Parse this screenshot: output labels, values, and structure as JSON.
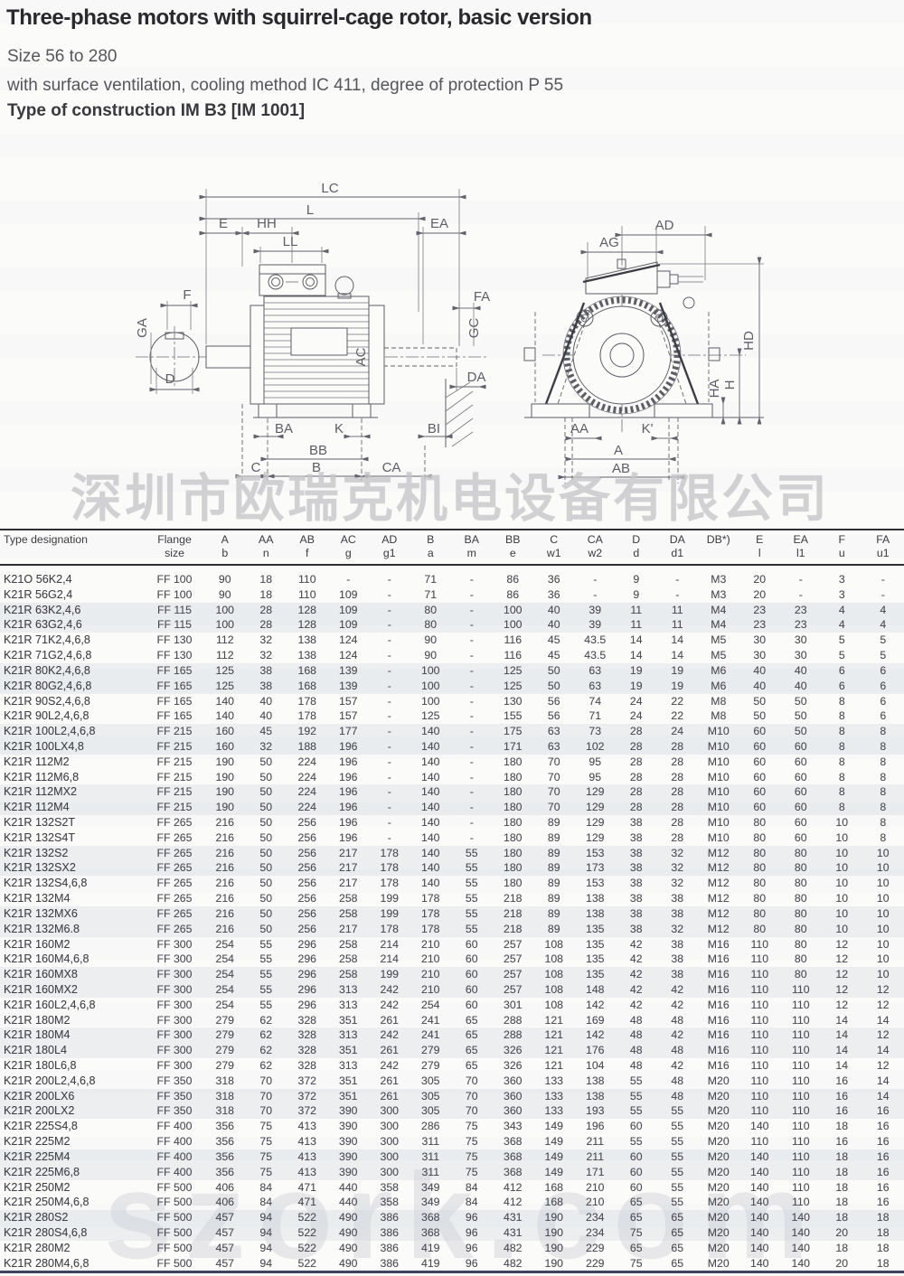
{
  "header": {
    "title": "Three-phase motors with squirrel-cage rotor, basic version",
    "line1": "Size 56 to 280",
    "line2": "with surface ventilation, cooling method IC 411, degree of protection P 55",
    "line3": "Type of construction IM B3 [IM 1001]"
  },
  "watermarks": {
    "company_cn": "深圳市欧瑞克机电设备有限公司",
    "site": "szork.com"
  },
  "diagram": {
    "side_labels": {
      "lc": "LC",
      "l": "L",
      "e": "E",
      "hh": "HH",
      "ll": "LL",
      "ea": "EA",
      "f": "F",
      "ga": "GA",
      "d": "D",
      "ac": "AC",
      "fa": "FA",
      "gc": "GC",
      "da": "DA",
      "ba": "BA",
      "k": "K",
      "bi": "BI",
      "bb": "BB",
      "c": "C",
      "b": "B",
      "ca": "CA"
    },
    "end_labels": {
      "ag": "AG",
      "ad": "AD",
      "hd": "HD",
      "ha": "HA",
      "h": "H",
      "aa": "AA",
      "kp": "K'",
      "a": "A",
      "ab": "AB"
    }
  },
  "table": {
    "columns": [
      {
        "l1": "Type designation",
        "l2": ""
      },
      {
        "l1": "Flange",
        "l2": "size"
      },
      {
        "l1": "A",
        "l2": "b"
      },
      {
        "l1": "AA",
        "l2": "n"
      },
      {
        "l1": "AB",
        "l2": "f"
      },
      {
        "l1": "AC",
        "l2": "g"
      },
      {
        "l1": "AD",
        "l2": "g1"
      },
      {
        "l1": "B",
        "l2": "a"
      },
      {
        "l1": "BA",
        "l2": "m"
      },
      {
        "l1": "BB",
        "l2": "e"
      },
      {
        "l1": "C",
        "l2": "w1"
      },
      {
        "l1": "CA",
        "l2": "w2"
      },
      {
        "l1": "D",
        "l2": "d"
      },
      {
        "l1": "DA",
        "l2": "d1"
      },
      {
        "l1": "DB*)",
        "l2": ""
      },
      {
        "l1": "E",
        "l2": "l"
      },
      {
        "l1": "EA",
        "l2": "l1"
      },
      {
        "l1": "F",
        "l2": "u"
      },
      {
        "l1": "FA",
        "l2": "u1"
      }
    ],
    "rows": [
      [
        "K21O 56K2,4",
        "FF 100",
        "90",
        "18",
        "110",
        "-",
        "-",
        "71",
        "-",
        "86",
        "36",
        "-",
        "9",
        "-",
        "M3",
        "20",
        "-",
        "3",
        "-"
      ],
      [
        "K21R 56G2,4",
        "FF 100",
        "90",
        "18",
        "110",
        "109",
        "-",
        "71",
        "-",
        "86",
        "36",
        "-",
        "9",
        "-",
        "M3",
        "20",
        "-",
        "3",
        "-"
      ],
      [
        "K21R 63K2,4,6",
        "FF 115",
        "100",
        "28",
        "128",
        "109",
        "-",
        "80",
        "-",
        "100",
        "40",
        "39",
        "11",
        "11",
        "M4",
        "23",
        "23",
        "4",
        "4"
      ],
      [
        "K21R 63G2,4,6",
        "FF 115",
        "100",
        "28",
        "128",
        "109",
        "-",
        "80",
        "-",
        "100",
        "40",
        "39",
        "11",
        "11",
        "M4",
        "23",
        "23",
        "4",
        "4"
      ],
      [
        "K21R 71K2,4,6,8",
        "FF 130",
        "112",
        "32",
        "138",
        "124",
        "-",
        "90",
        "-",
        "116",
        "45",
        "43.5",
        "14",
        "14",
        "M5",
        "30",
        "30",
        "5",
        "5"
      ],
      [
        "K21R 71G2,4,6,8",
        "FF 130",
        "112",
        "32",
        "138",
        "124",
        "-",
        "90",
        "-",
        "116",
        "45",
        "43.5",
        "14",
        "14",
        "M5",
        "30",
        "30",
        "5",
        "5"
      ],
      [
        "K21R 80K2,4,6,8",
        "FF 165",
        "125",
        "38",
        "168",
        "139",
        "-",
        "100",
        "-",
        "125",
        "50",
        "63",
        "19",
        "19",
        "M6",
        "40",
        "40",
        "6",
        "6"
      ],
      [
        "K21R 80G2,4,6,8",
        "FF 165",
        "125",
        "38",
        "168",
        "139",
        "-",
        "100",
        "-",
        "125",
        "50",
        "63",
        "19",
        "19",
        "M6",
        "40",
        "40",
        "6",
        "6"
      ],
      [
        "K21R 90S2,4,6,8",
        "FF 165",
        "140",
        "40",
        "178",
        "157",
        "-",
        "100",
        "-",
        "130",
        "56",
        "74",
        "24",
        "22",
        "M8",
        "50",
        "50",
        "8",
        "6"
      ],
      [
        "K21R 90L2,4,6,8",
        "FF 165",
        "140",
        "40",
        "178",
        "157",
        "-",
        "125",
        "-",
        "155",
        "56",
        "71",
        "24",
        "22",
        "M8",
        "50",
        "50",
        "8",
        "6"
      ],
      [
        "K21R 100L2,4,6,8",
        "FF 215",
        "160",
        "45",
        "192",
        "177",
        "-",
        "140",
        "-",
        "175",
        "63",
        "73",
        "28",
        "24",
        "M10",
        "60",
        "50",
        "8",
        "8"
      ],
      [
        "K21R 100LX4,8",
        "FF 215",
        "160",
        "32",
        "188",
        "196",
        "-",
        "140",
        "-",
        "171",
        "63",
        "102",
        "28",
        "28",
        "M10",
        "60",
        "60",
        "8",
        "8"
      ],
      [
        "K21R 112M2",
        "FF 215",
        "190",
        "50",
        "224",
        "196",
        "-",
        "140",
        "-",
        "180",
        "70",
        "95",
        "28",
        "28",
        "M10",
        "60",
        "60",
        "8",
        "8"
      ],
      [
        "K21R 112M6,8",
        "FF 215",
        "190",
        "50",
        "224",
        "196",
        "-",
        "140",
        "-",
        "180",
        "70",
        "95",
        "28",
        "28",
        "M10",
        "60",
        "60",
        "8",
        "8"
      ],
      [
        "K21R 112MX2",
        "FF 215",
        "190",
        "50",
        "224",
        "196",
        "-",
        "140",
        "-",
        "180",
        "70",
        "129",
        "28",
        "28",
        "M10",
        "60",
        "60",
        "8",
        "8"
      ],
      [
        "K21R 112M4",
        "FF 215",
        "190",
        "50",
        "224",
        "196",
        "-",
        "140",
        "-",
        "180",
        "70",
        "129",
        "28",
        "28",
        "M10",
        "60",
        "60",
        "8",
        "8"
      ],
      [
        "K21R 132S2T",
        "FF 265",
        "216",
        "50",
        "256",
        "196",
        "-",
        "140",
        "-",
        "180",
        "89",
        "129",
        "38",
        "28",
        "M10",
        "80",
        "60",
        "10",
        "8"
      ],
      [
        "K21R 132S4T",
        "FF 265",
        "216",
        "50",
        "256",
        "196",
        "-",
        "140",
        "-",
        "180",
        "89",
        "129",
        "38",
        "28",
        "M10",
        "80",
        "60",
        "10",
        "8"
      ],
      [
        "K21R 132S2",
        "FF 265",
        "216",
        "50",
        "256",
        "217",
        "178",
        "140",
        "55",
        "180",
        "89",
        "153",
        "38",
        "32",
        "M12",
        "80",
        "80",
        "10",
        "10"
      ],
      [
        "K21R 132SX2",
        "FF 265",
        "216",
        "50",
        "256",
        "217",
        "178",
        "140",
        "55",
        "180",
        "89",
        "173",
        "38",
        "32",
        "M12",
        "80",
        "80",
        "10",
        "10"
      ],
      [
        "K21R 132S4,6,8",
        "FF 265",
        "216",
        "50",
        "256",
        "217",
        "178",
        "140",
        "55",
        "180",
        "89",
        "153",
        "38",
        "32",
        "M12",
        "80",
        "80",
        "10",
        "10"
      ],
      [
        "K21R 132M4",
        "FF 265",
        "216",
        "50",
        "256",
        "258",
        "199",
        "178",
        "55",
        "218",
        "89",
        "138",
        "38",
        "38",
        "M12",
        "80",
        "80",
        "10",
        "10"
      ],
      [
        "K21R 132MX6",
        "FF 265",
        "216",
        "50",
        "256",
        "258",
        "199",
        "178",
        "55",
        "218",
        "89",
        "138",
        "38",
        "38",
        "M12",
        "80",
        "80",
        "10",
        "10"
      ],
      [
        "K21R 132M6.8",
        "FF 265",
        "216",
        "50",
        "256",
        "217",
        "178",
        "178",
        "55",
        "218",
        "89",
        "135",
        "38",
        "32",
        "M12",
        "80",
        "80",
        "10",
        "10"
      ],
      [
        "K21R 160M2",
        "FF 300",
        "254",
        "55",
        "296",
        "258",
        "214",
        "210",
        "60",
        "257",
        "108",
        "135",
        "42",
        "38",
        "M16",
        "110",
        "80",
        "12",
        "10"
      ],
      [
        "K21R 160M4,6,8",
        "FF 300",
        "254",
        "55",
        "296",
        "258",
        "214",
        "210",
        "60",
        "257",
        "108",
        "135",
        "42",
        "38",
        "M16",
        "110",
        "80",
        "12",
        "10"
      ],
      [
        "K21R 160MX8",
        "FF 300",
        "254",
        "55",
        "296",
        "258",
        "199",
        "210",
        "60",
        "257",
        "108",
        "135",
        "42",
        "38",
        "M16",
        "110",
        "80",
        "12",
        "10"
      ],
      [
        "K21R 160MX2",
        "FF 300",
        "254",
        "55",
        "296",
        "313",
        "242",
        "210",
        "60",
        "257",
        "108",
        "148",
        "42",
        "42",
        "M16",
        "110",
        "110",
        "12",
        "12"
      ],
      [
        "K21R 160L2,4,6,8",
        "FF 300",
        "254",
        "55",
        "296",
        "313",
        "242",
        "254",
        "60",
        "301",
        "108",
        "142",
        "42",
        "42",
        "M16",
        "110",
        "110",
        "12",
        "12"
      ],
      [
        "K21R 180M2",
        "FF 300",
        "279",
        "62",
        "328",
        "351",
        "261",
        "241",
        "65",
        "288",
        "121",
        "169",
        "48",
        "48",
        "M16",
        "110",
        "110",
        "14",
        "14"
      ],
      [
        "K21R 180M4",
        "FF 300",
        "279",
        "62",
        "328",
        "313",
        "242",
        "241",
        "65",
        "288",
        "121",
        "142",
        "48",
        "42",
        "M16",
        "110",
        "110",
        "14",
        "12"
      ],
      [
        "K21R 180L4",
        "FF 300",
        "279",
        "62",
        "328",
        "351",
        "261",
        "279",
        "65",
        "326",
        "121",
        "176",
        "48",
        "48",
        "M16",
        "110",
        "110",
        "14",
        "14"
      ],
      [
        "K21R 180L6,8",
        "FF 300",
        "279",
        "62",
        "328",
        "313",
        "242",
        "279",
        "65",
        "326",
        "121",
        "104",
        "48",
        "42",
        "M16",
        "110",
        "110",
        "14",
        "12"
      ],
      [
        "K21R 200L2,4,6,8",
        "FF 350",
        "318",
        "70",
        "372",
        "351",
        "261",
        "305",
        "70",
        "360",
        "133",
        "138",
        "55",
        "48",
        "M20",
        "110",
        "110",
        "16",
        "14"
      ],
      [
        "K21R 200LX6",
        "FF 350",
        "318",
        "70",
        "372",
        "351",
        "261",
        "305",
        "70",
        "360",
        "133",
        "138",
        "55",
        "48",
        "M20",
        "110",
        "110",
        "16",
        "14"
      ],
      [
        "K21R 200LX2",
        "FF 350",
        "318",
        "70",
        "372",
        "390",
        "300",
        "305",
        "70",
        "360",
        "133",
        "193",
        "55",
        "55",
        "M20",
        "110",
        "110",
        "16",
        "16"
      ],
      [
        "K21R 225S4,8",
        "FF 400",
        "356",
        "75",
        "413",
        "390",
        "300",
        "286",
        "75",
        "343",
        "149",
        "196",
        "60",
        "55",
        "M20",
        "140",
        "110",
        "18",
        "16"
      ],
      [
        "K21R 225M2",
        "FF 400",
        "356",
        "75",
        "413",
        "390",
        "300",
        "311",
        "75",
        "368",
        "149",
        "211",
        "55",
        "55",
        "M20",
        "110",
        "110",
        "16",
        "16"
      ],
      [
        "K21R 225M4",
        "FF 400",
        "356",
        "75",
        "413",
        "390",
        "300",
        "311",
        "75",
        "368",
        "149",
        "211",
        "60",
        "55",
        "M20",
        "140",
        "110",
        "18",
        "16"
      ],
      [
        "K21R 225M6,8",
        "FF 400",
        "356",
        "75",
        "413",
        "390",
        "300",
        "311",
        "75",
        "368",
        "149",
        "171",
        "60",
        "55",
        "M20",
        "140",
        "110",
        "18",
        "16"
      ],
      [
        "K21R 250M2",
        "FF 500",
        "406",
        "84",
        "471",
        "440",
        "358",
        "349",
        "84",
        "412",
        "168",
        "210",
        "60",
        "55",
        "M20",
        "140",
        "110",
        "18",
        "16"
      ],
      [
        "K21R 250M4,6,8",
        "FF 500",
        "406",
        "84",
        "471",
        "440",
        "358",
        "349",
        "84",
        "412",
        "168",
        "210",
        "65",
        "55",
        "M20",
        "140",
        "110",
        "18",
        "16"
      ],
      [
        "K21R 280S2",
        "FF 500",
        "457",
        "94",
        "522",
        "490",
        "386",
        "368",
        "96",
        "431",
        "190",
        "234",
        "65",
        "65",
        "M20",
        "140",
        "140",
        "18",
        "18"
      ],
      [
        "K21R 280S4,6,8",
        "FF 500",
        "457",
        "94",
        "522",
        "490",
        "386",
        "368",
        "96",
        "431",
        "190",
        "234",
        "75",
        "65",
        "M20",
        "140",
        "140",
        "20",
        "18"
      ],
      [
        "K21R 280M2",
        "FF 500",
        "457",
        "94",
        "522",
        "490",
        "386",
        "419",
        "96",
        "482",
        "190",
        "229",
        "65",
        "65",
        "M20",
        "140",
        "140",
        "18",
        "18"
      ],
      [
        "K21R 280M4,6,8",
        "FF 500",
        "457",
        "94",
        "522",
        "490",
        "386",
        "419",
        "96",
        "482",
        "190",
        "229",
        "75",
        "65",
        "M20",
        "140",
        "140",
        "20",
        "18"
      ]
    ]
  }
}
